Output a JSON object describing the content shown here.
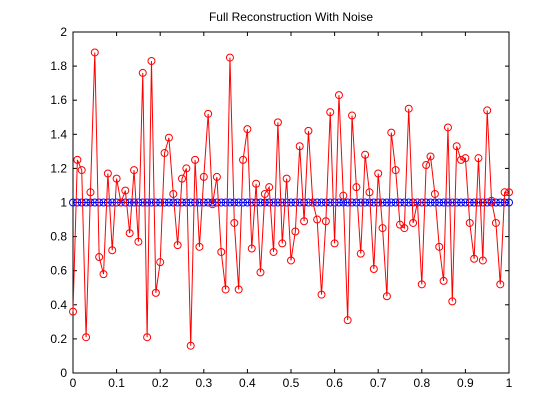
{
  "chart_data": {
    "type": "line",
    "title": "Full Reconstruction With Noise",
    "xlabel": "",
    "ylabel": "",
    "xlim": [
      0,
      1
    ],
    "ylim": [
      0,
      2
    ],
    "xticks": [
      0,
      0.1,
      0.2,
      0.3,
      0.4,
      0.5,
      0.6,
      0.7,
      0.8,
      0.9,
      1
    ],
    "xtick_labels": [
      "0",
      "0.1",
      "0.2",
      "0.3",
      "0.4",
      "0.5",
      "0.6",
      "0.7",
      "0.8",
      "0.9",
      "1"
    ],
    "yticks": [
      0,
      0.2,
      0.4,
      0.6,
      0.8,
      1,
      1.2,
      1.4,
      1.6,
      1.8,
      2
    ],
    "ytick_labels": [
      "0",
      "0.2",
      "0.4",
      "0.6",
      "0.8",
      "1",
      "1.2",
      "1.4",
      "1.6",
      "1.8",
      "2"
    ],
    "grid": false,
    "colors": {
      "noisy": "#ff0000",
      "clean": "#0000ff",
      "axes": "#000000"
    },
    "series": [
      {
        "marker": "circle",
        "line": true,
        "x": [
          0,
          0.01,
          0.02,
          0.03,
          0.04,
          0.05,
          0.06,
          0.07,
          0.08,
          0.09,
          0.1,
          0.11,
          0.12,
          0.13,
          0.14,
          0.15,
          0.16,
          0.17,
          0.18,
          0.19,
          0.2,
          0.21,
          0.22,
          0.23,
          0.24,
          0.25,
          0.26,
          0.27,
          0.28,
          0.29,
          0.3,
          0.31,
          0.32,
          0.33,
          0.34,
          0.35,
          0.36,
          0.37,
          0.38,
          0.39,
          0.4,
          0.41,
          0.42,
          0.43,
          0.44,
          0.45,
          0.46,
          0.47,
          0.48,
          0.49,
          0.5,
          0.51,
          0.52,
          0.53,
          0.54,
          0.55,
          0.56,
          0.57,
          0.58,
          0.59,
          0.6,
          0.61,
          0.62,
          0.63,
          0.64,
          0.65,
          0.66,
          0.67,
          0.68,
          0.69,
          0.7,
          0.71,
          0.72,
          0.73,
          0.74,
          0.75,
          0.76,
          0.77,
          0.78,
          0.79,
          0.8,
          0.81,
          0.82,
          0.83,
          0.84,
          0.85,
          0.86,
          0.87,
          0.88,
          0.89,
          0.9,
          0.91,
          0.92,
          0.93,
          0.94,
          0.95,
          0.96,
          0.97,
          0.98,
          0.99,
          1.0
        ],
        "y": [
          0.36,
          1.25,
          1.19,
          0.21,
          1.06,
          1.88,
          0.68,
          0.58,
          1.17,
          0.72,
          1.14,
          1.0,
          1.07,
          0.82,
          1.19,
          0.77,
          1.76,
          0.21,
          1.83,
          0.47,
          0.65,
          1.29,
          1.38,
          1.05,
          0.75,
          1.14,
          1.2,
          0.16,
          1.25,
          0.74,
          1.15,
          1.52,
          0.99,
          1.15,
          0.71,
          0.49,
          1.85,
          0.88,
          0.49,
          1.25,
          1.43,
          0.73,
          1.11,
          0.59,
          1.05,
          1.09,
          0.71,
          1.47,
          0.76,
          1.14,
          0.66,
          0.83,
          1.33,
          0.89,
          1.42,
          1.0,
          0.9,
          0.46,
          0.89,
          1.53,
          0.76,
          1.63,
          1.04,
          0.31,
          1.51,
          1.09,
          0.7,
          1.28,
          1.06,
          0.61,
          1.17,
          0.85,
          0.45,
          1.41,
          1.19,
          0.87,
          0.85,
          1.55,
          0.88,
          1.0,
          0.52,
          1.22,
          1.27,
          1.05,
          0.74,
          0.54,
          1.44,
          0.42,
          1.33,
          1.25,
          1.26,
          0.88,
          0.67,
          1.26,
          0.66,
          1.54,
          1.01,
          0.88,
          0.52,
          1.06,
          1.06
        ]
      },
      {
        "marker": "circle",
        "line": true,
        "y_constant": 1
      }
    ]
  }
}
